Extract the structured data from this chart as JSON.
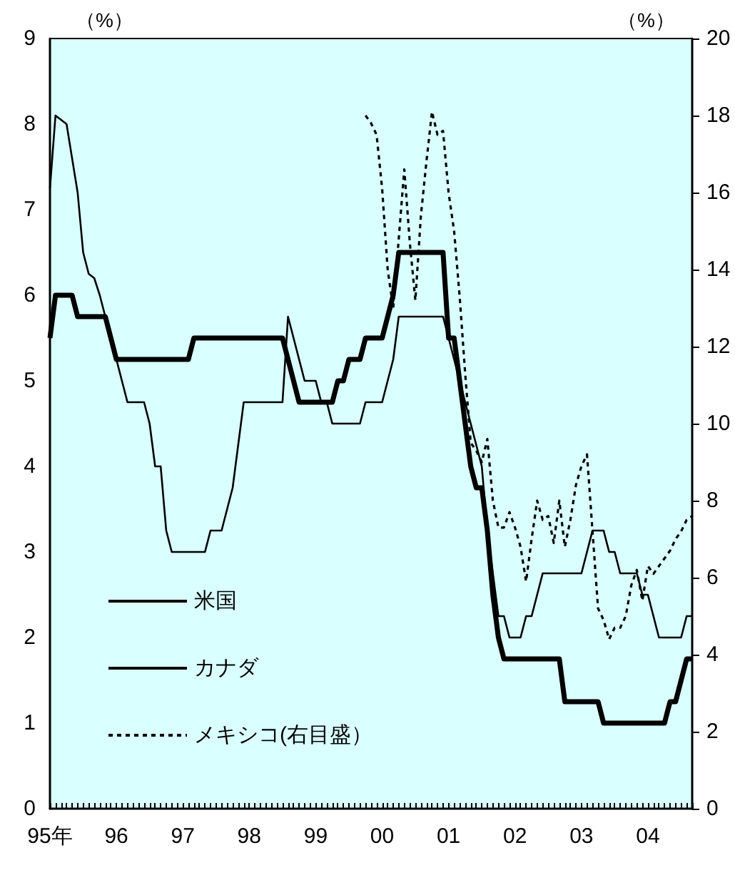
{
  "chart_data": {
    "type": "line",
    "ylabel": "（%）",
    "y2label": "（%）",
    "categories": [
      "95年",
      null,
      null,
      null,
      null,
      null,
      null,
      null,
      null,
      null,
      null,
      null,
      "96",
      null,
      null,
      null,
      null,
      null,
      null,
      null,
      null,
      null,
      null,
      null,
      "97",
      null,
      null,
      null,
      null,
      null,
      null,
      null,
      null,
      null,
      null,
      null,
      "98",
      null,
      null,
      null,
      null,
      null,
      null,
      null,
      null,
      null,
      null,
      null,
      "99",
      null,
      null,
      null,
      null,
      null,
      null,
      null,
      null,
      null,
      null,
      null,
      "00",
      null,
      null,
      null,
      null,
      null,
      null,
      null,
      null,
      null,
      null,
      null,
      "01",
      null,
      null,
      null,
      null,
      null,
      null,
      null,
      null,
      null,
      null,
      null,
      "02",
      null,
      null,
      null,
      null,
      null,
      null,
      null,
      null,
      null,
      null,
      null,
      "03",
      null,
      null,
      null,
      null,
      null,
      null,
      null,
      null,
      null,
      null,
      null,
      "04",
      null,
      null,
      null,
      null,
      null,
      null,
      null,
      null
    ],
    "series": [
      {
        "name": "米国",
        "color": "#000000",
        "line_style": "solid",
        "values": [
          5.5,
          6,
          6,
          6,
          6,
          5.75,
          5.75,
          5.75,
          5.75,
          5.75,
          5.75,
          5.5,
          5.25,
          5.25,
          5.25,
          5.25,
          5.25,
          5.25,
          5.25,
          5.25,
          5.25,
          5.25,
          5.25,
          5.25,
          5.25,
          5.25,
          5.5,
          5.5,
          5.5,
          5.5,
          5.5,
          5.5,
          5.5,
          5.5,
          5.5,
          5.5,
          5.5,
          5.5,
          5.5,
          5.5,
          5.5,
          5.5,
          5.5,
          5.25,
          5.0,
          4.75,
          4.75,
          4.75,
          4.75,
          4.75,
          4.75,
          4.75,
          5.0,
          5.0,
          5.25,
          5.25,
          5.25,
          5.5,
          5.5,
          5.5,
          5.5,
          5.75,
          6.0,
          6.5,
          6.5,
          6.5,
          6.5,
          6.5,
          6.5,
          6.5,
          6.5,
          6.5,
          5.5,
          5.5,
          5.0,
          4.5,
          4.0,
          3.75,
          3.75,
          3.25,
          2.5,
          2.0,
          1.75,
          1.75,
          1.75,
          1.75,
          1.75,
          1.75,
          1.75,
          1.75,
          1.75,
          1.75,
          1.75,
          1.25,
          1.25,
          1.25,
          1.25,
          1.25,
          1.25,
          1.25,
          1.0,
          1.0,
          1.0,
          1.0,
          1.0,
          1.0,
          1.0,
          1.0,
          1.0,
          1.0,
          1.0,
          1.0,
          1.25,
          1.25,
          1.5,
          1.75,
          1.75
        ]
      },
      {
        "name": "カナダ",
        "color": "#000000",
        "line_style": "solid",
        "values": [
          7.25,
          8.1,
          8.05,
          8.0,
          7.6,
          7.2,
          6.5,
          6.25,
          6.2,
          6.0,
          5.75,
          5.5,
          5.25,
          5.0,
          4.75,
          4.75,
          4.75,
          4.75,
          4.5,
          4.0,
          4.0,
          3.25,
          3.0,
          3.0,
          3.0,
          3.0,
          3.0,
          3.0,
          3.0,
          3.25,
          3.25,
          3.25,
          3.5,
          3.75,
          4.25,
          4.75,
          4.75,
          4.75,
          4.75,
          4.75,
          4.75,
          4.75,
          4.75,
          5.75,
          5.5,
          5.25,
          5.0,
          5.0,
          5.0,
          4.75,
          4.75,
          4.5,
          4.5,
          4.5,
          4.5,
          4.5,
          4.5,
          4.75,
          4.75,
          4.75,
          4.75,
          5.0,
          5.25,
          5.75,
          5.75,
          5.75,
          5.75,
          5.75,
          5.75,
          5.75,
          5.75,
          5.75,
          5.5,
          5.25,
          5.0,
          4.75,
          4.5,
          4.25,
          4.0,
          3.25,
          2.75,
          2.25,
          2.25,
          2.0,
          2.0,
          2.0,
          2.25,
          2.25,
          2.5,
          2.75,
          2.75,
          2.75,
          2.75,
          2.75,
          2.75,
          2.75,
          2.75,
          3.0,
          3.25,
          3.25,
          3.25,
          3.0,
          3.0,
          2.75,
          2.75,
          2.75,
          2.75,
          2.5,
          2.5,
          2.25,
          2.0,
          2.0,
          2.0,
          2.0,
          2.0,
          2.25,
          2.25
        ]
      },
      {
        "name": "メキシコ(右目盛）",
        "color": "#000000",
        "line_style": "dotted",
        "axis": "y2",
        "values": [
          null,
          null,
          null,
          null,
          null,
          null,
          null,
          null,
          null,
          null,
          null,
          null,
          null,
          null,
          null,
          null,
          null,
          null,
          null,
          null,
          null,
          null,
          null,
          null,
          null,
          null,
          null,
          null,
          null,
          null,
          null,
          null,
          null,
          null,
          null,
          null,
          null,
          null,
          null,
          null,
          null,
          null,
          null,
          null,
          null,
          null,
          null,
          null,
          null,
          null,
          null,
          null,
          null,
          null,
          null,
          null,
          null,
          18.0,
          17.8,
          17.5,
          16.1,
          14.0,
          13.0,
          14.8,
          16.6,
          14.7,
          13.2,
          15.4,
          16.8,
          18.1,
          17.5,
          17.6,
          16.0,
          15.0,
          13.3,
          11.3,
          9.5,
          9.3,
          9.0,
          9.6,
          8.0,
          7.3,
          7.3,
          7.7,
          7.3,
          6.8,
          5.9,
          7.0,
          8.0,
          7.5,
          7.6,
          6.9,
          8.0,
          6.8,
          7.5,
          8.4,
          8.9,
          9.2,
          7.2,
          5.2,
          4.9,
          4.4,
          4.7,
          4.7,
          5.0,
          5.8,
          6.2,
          5.4,
          6.3,
          6.1,
          6.3,
          6.5,
          6.7,
          7.0,
          7.2,
          7.5,
          7.6
        ]
      }
    ],
    "ylim": [
      0,
      9
    ],
    "yticks": [
      0,
      1,
      2,
      3,
      4,
      5,
      6,
      7,
      8,
      9
    ],
    "y2lim": [
      0,
      20
    ],
    "y2ticks": [
      0,
      2,
      4,
      6,
      8,
      10,
      12,
      14,
      16,
      18,
      20
    ],
    "grid": false,
    "legend": "bottom left",
    "marker": "none"
  }
}
